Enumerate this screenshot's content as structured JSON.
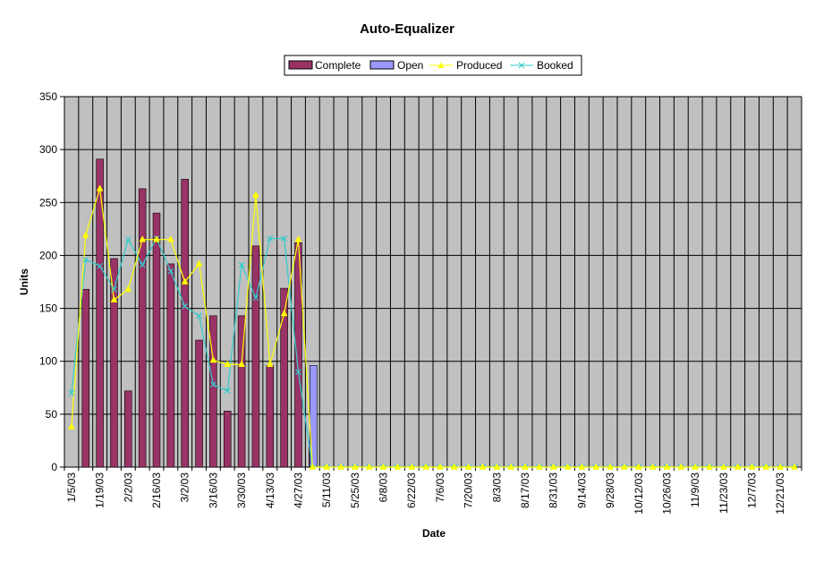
{
  "chart_data": {
    "type": "bar",
    "title": "Auto-Equalizer",
    "xlabel": "Date",
    "ylabel": "Units",
    "ylim": [
      0,
      350
    ],
    "yticks": [
      0,
      50,
      100,
      150,
      200,
      250,
      300,
      350
    ],
    "grid": true,
    "legend_position": "top-center",
    "colors": {
      "plot_bg": "#c0c0c0",
      "complete": "#993366",
      "open": "#9999ff",
      "produced": "#ffff00",
      "booked": "#33cccc"
    },
    "categories": [
      "1/5/03",
      "1/12/03",
      "1/19/03",
      "1/26/03",
      "2/2/03",
      "2/9/03",
      "2/16/03",
      "2/23/03",
      "3/2/03",
      "3/9/03",
      "3/16/03",
      "3/23/03",
      "3/30/03",
      "4/6/03",
      "4/13/03",
      "4/20/03",
      "4/27/03",
      "5/4/03",
      "5/11/03",
      "5/18/03",
      "5/25/03",
      "6/1/03",
      "6/8/03",
      "6/15/03",
      "6/22/03",
      "6/29/03",
      "7/6/03",
      "7/13/03",
      "7/20/03",
      "7/27/03",
      "8/3/03",
      "8/10/03",
      "8/17/03",
      "8/24/03",
      "8/31/03",
      "9/7/03",
      "9/14/03",
      "9/21/03",
      "9/28/03",
      "10/5/03",
      "10/12/03",
      "10/19/03",
      "10/26/03",
      "11/2/03",
      "11/9/03",
      "11/16/03",
      "11/23/03",
      "11/30/03",
      "12/7/03",
      "12/14/03",
      "12/21/03",
      "12/28/03"
    ],
    "tick_labels": [
      "1/5/03",
      "",
      "1/19/03",
      "",
      "2/2/03",
      "",
      "2/16/03",
      "",
      "3/2/03",
      "",
      "3/16/03",
      "",
      "3/30/03",
      "",
      "4/13/03",
      "",
      "4/27/03",
      "",
      "5/11/03",
      "",
      "5/25/03",
      "",
      "6/8/03",
      "",
      "6/22/03",
      "",
      "7/6/03",
      "",
      "7/20/03",
      "",
      "8/3/03",
      "",
      "8/17/03",
      "",
      "8/31/03",
      "",
      "9/14/03",
      "",
      "9/28/03",
      "",
      "10/12/03",
      "",
      "10/26/03",
      "",
      "11/9/03",
      "",
      "11/23/03",
      "",
      "12/7/03",
      "",
      "12/21/03",
      ""
    ],
    "series": [
      {
        "name": "Complete",
        "kind": "bar",
        "values": [
          0,
          168,
          291,
          197,
          72,
          263,
          240,
          192,
          272,
          120,
          143,
          53,
          143,
          209,
          96,
          169,
          212,
          24,
          0,
          0,
          0,
          0,
          0,
          0,
          0,
          0,
          0,
          0,
          0,
          0,
          0,
          0,
          0,
          0,
          0,
          0,
          0,
          0,
          0,
          0,
          0,
          0,
          0,
          0,
          0,
          0,
          0,
          0,
          0,
          0,
          0,
          0
        ]
      },
      {
        "name": "Open",
        "kind": "bar",
        "values": [
          0,
          0,
          0,
          0,
          0,
          0,
          0,
          0,
          0,
          0,
          0,
          0,
          0,
          0,
          0,
          0,
          0,
          96,
          0,
          0,
          0,
          0,
          0,
          0,
          0,
          0,
          0,
          0,
          0,
          0,
          0,
          0,
          0,
          0,
          0,
          0,
          0,
          0,
          0,
          0,
          0,
          0,
          0,
          0,
          0,
          0,
          0,
          0,
          0,
          0,
          0,
          0
        ]
      },
      {
        "name": "Produced",
        "kind": "line",
        "marker": "triangle",
        "values": [
          38,
          219,
          263,
          158,
          168,
          215,
          215,
          215,
          175,
          192,
          101,
          97,
          97,
          257,
          97,
          145,
          215,
          0,
          0,
          0,
          0,
          0,
          0,
          0,
          0,
          0,
          0,
          0,
          0,
          0,
          0,
          0,
          0,
          0,
          0,
          0,
          0,
          0,
          0,
          0,
          0,
          0,
          0,
          0,
          0,
          0,
          0,
          0,
          0,
          0,
          0,
          0
        ]
      },
      {
        "name": "Booked",
        "kind": "line",
        "marker": "x",
        "values": [
          70,
          196,
          190,
          168,
          215,
          191,
          216,
          185,
          152,
          143,
          78,
          72,
          191,
          160,
          216,
          216,
          90,
          0,
          0,
          0,
          0,
          0,
          0,
          0,
          0,
          0,
          0,
          0,
          0,
          0,
          0,
          0,
          0,
          0,
          0,
          0,
          0,
          0,
          0,
          0,
          0,
          0,
          0,
          0,
          0,
          0,
          0,
          0,
          0,
          0,
          0,
          0
        ]
      }
    ]
  }
}
